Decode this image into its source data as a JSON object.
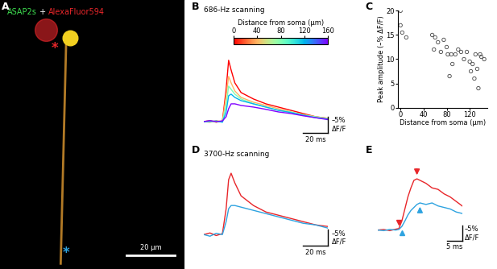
{
  "chart_data": [
    {
      "panel": "A",
      "type": "image",
      "label_parts": [
        {
          "text": "ASAP2s",
          "color": "#3ddc4f"
        },
        {
          "text": " + ",
          "color": "#ffffff"
        },
        {
          "text": "AlexaFluor594",
          "color": "#e8262a"
        }
      ],
      "xlim": [
        0,
        76
      ],
      "ylim": [
        0,
        111
      ],
      "scale_bar": {
        "length": 20,
        "label": "20 µm"
      },
      "markers": [
        {
          "text": "*",
          "color": "#e8262a"
        },
        {
          "text": "*",
          "color": "#2ea3e0"
        }
      ],
      "tick_labels": false
    },
    {
      "panel": "B",
      "type": "line",
      "title": "686-Hz scanning",
      "x": [
        0,
        5,
        10,
        15,
        18,
        20,
        22,
        25,
        30,
        40,
        50,
        60,
        70,
        80,
        90,
        100
      ],
      "series": [
        {
          "distance": 0,
          "values": [
            0,
            0.3,
            -0.2,
            0.2,
            10,
            19,
            16,
            12,
            9,
            7,
            5.5,
            4.5,
            3.5,
            2.5,
            1.5,
            1
          ]
        },
        {
          "distance": 40,
          "values": [
            0,
            -0.2,
            0.3,
            0,
            8,
            14,
            12,
            9.5,
            7.5,
            6,
            5,
            4,
            3,
            2.2,
            1.5,
            1
          ]
        },
        {
          "distance": 80,
          "values": [
            0,
            0.2,
            -0.1,
            0.1,
            5,
            11,
            10,
            8.5,
            7,
            5.5,
            4.5,
            3.5,
            3,
            2,
            1.5,
            0.8
          ]
        },
        {
          "distance": 120,
          "values": [
            0,
            0,
            0.2,
            -0.2,
            3,
            8,
            8.5,
            7.5,
            6.5,
            5.5,
            4.5,
            3.5,
            2.8,
            2,
            1.2,
            0.8
          ]
        },
        {
          "distance": 160,
          "values": [
            0,
            0.3,
            0,
            0.2,
            1.5,
            4,
            5.5,
            5.5,
            5,
            4.5,
            3.8,
            3,
            2.5,
            1.8,
            1.2,
            0.6
          ]
        }
      ],
      "xlim": [
        0,
        100
      ],
      "ylim": [
        -4,
        21
      ],
      "colorbar": {
        "label": "Distance from soma (µm)",
        "range": [
          0,
          160
        ],
        "ticks": [
          0,
          40,
          80,
          120,
          160
        ]
      },
      "scale_bar": {
        "x": 20,
        "x_label": "20 ms",
        "y": 5,
        "y_label": "–5%\nΔF/F"
      },
      "tick_labels": false
    },
    {
      "panel": "C",
      "type": "scatter",
      "x": [
        0,
        0,
        3,
        10,
        55,
        58,
        60,
        65,
        70,
        75,
        80,
        82,
        85,
        88,
        90,
        95,
        100,
        105,
        110,
        115,
        120,
        122,
        125,
        128,
        130,
        133,
        135,
        138,
        140,
        145
      ],
      "values": [
        20,
        17,
        15.5,
        14.5,
        15,
        12,
        14.5,
        13.5,
        11.5,
        14,
        12.5,
        11,
        6.5,
        11,
        9,
        11,
        12,
        11.5,
        10,
        11.5,
        9.5,
        7.5,
        9,
        6,
        11,
        8,
        4,
        11,
        10.5,
        10
      ],
      "x_label": "Distance from soma (µm)",
      "y_label": "Peak amplitude (–% ΔF/F)",
      "xlim": [
        -5,
        150
      ],
      "ylim": [
        0,
        20
      ],
      "xticks": [
        0,
        40,
        80,
        120
      ],
      "yticks": [
        0,
        5,
        10,
        15,
        20
      ],
      "marker": "circle"
    },
    {
      "panel": "D",
      "type": "line",
      "title": "3700-Hz scanning",
      "x": [
        0,
        5,
        10,
        15,
        18,
        20,
        22,
        25,
        30,
        40,
        50,
        60,
        70,
        80,
        90,
        100
      ],
      "series": [
        {
          "color": "#e8262a",
          "values": [
            0,
            0.5,
            -0.3,
            0.3,
            8,
            17,
            19,
            16,
            12,
            9,
            7,
            6,
            5,
            4,
            3,
            2.5
          ]
        },
        {
          "color": "#2ea3e0",
          "values": [
            0,
            -0.5,
            0.4,
            0,
            4,
            8,
            9,
            9,
            8.5,
            7.5,
            6.5,
            5.5,
            4.5,
            3.5,
            3,
            2
          ]
        }
      ],
      "xlim": [
        0,
        100
      ],
      "ylim": [
        -4,
        21
      ],
      "scale_bar": {
        "x": 20,
        "x_label": "20 ms",
        "y": 5,
        "y_label": "–5%\nΔF/F"
      },
      "tick_labels": false
    },
    {
      "panel": "E",
      "type": "line",
      "x": [
        0,
        2,
        4,
        6,
        7,
        8,
        9,
        10,
        11,
        12,
        13,
        14,
        16,
        18,
        20,
        22,
        24,
        26,
        28
      ],
      "series": [
        {
          "color": "#e8262a",
          "onset": 7,
          "peak": 13,
          "values": [
            0,
            0.2,
            -0.2,
            0.3,
            0.5,
            3,
            7,
            11,
            14,
            16.5,
            17,
            16.5,
            15.5,
            14,
            13.5,
            12,
            11,
            9.5,
            8
          ]
        },
        {
          "color": "#2ea3e0",
          "onset": 8,
          "peak": 14,
          "values": [
            0,
            -0.2,
            0.2,
            0,
            0.2,
            1.2,
            3,
            5,
            6.5,
            7.5,
            8.5,
            9,
            8.5,
            9,
            8,
            7.5,
            7,
            6,
            5.5
          ]
        }
      ],
      "xlim": [
        0,
        28
      ],
      "ylim": [
        -4,
        21
      ],
      "scale_bar": {
        "x": 5,
        "x_label": "5 ms",
        "y": 5,
        "y_label": "–5%\nΔF/F"
      },
      "tick_labels": false
    }
  ]
}
